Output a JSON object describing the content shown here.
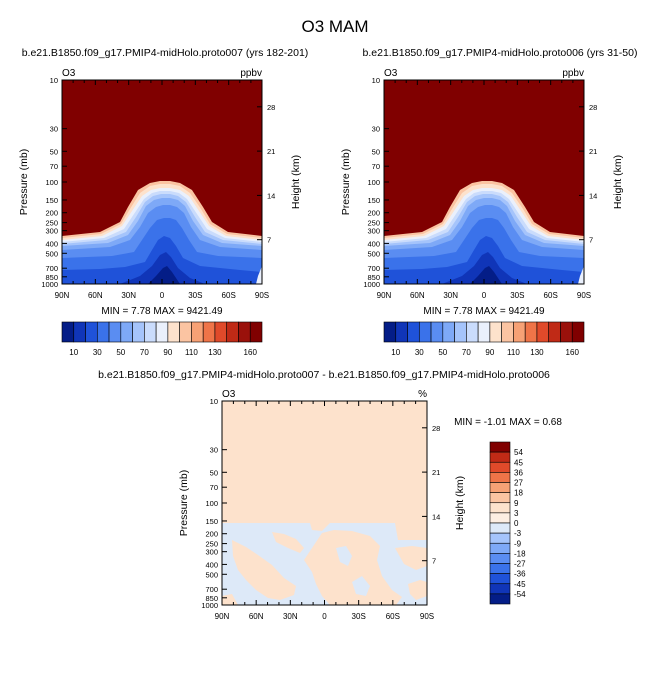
{
  "figure": {
    "title": "O3 MAM"
  },
  "colors": {
    "diff_positive_bg": "#fde2cc",
    "diff_negative_bg": "#dde9f8",
    "plot_frame": "#000000"
  },
  "chart_data": [
    {
      "type": "heatmap",
      "panel": "top-left",
      "title": "b.e21.B1850.f09_g17.PMIP4-midHolo.proto007 (yrs 182-201)",
      "left_label": "O3",
      "right_label": "ppbv",
      "ylabel": "Pressure (mb)",
      "ylabel_right": "Height (km)",
      "x_ticks": [
        "90N",
        "60N",
        "30N",
        "0",
        "30S",
        "60S",
        "90S"
      ],
      "y_ticks": [
        "10",
        "30",
        "50",
        "70",
        "100",
        "150",
        "200",
        "250",
        "300",
        "400",
        "500",
        "700",
        "850",
        "1000"
      ],
      "y_ticks_right": [
        "28",
        "21",
        "14",
        "7"
      ],
      "y_scale": "log",
      "ylim": [
        1000,
        10
      ],
      "xlim": [
        "90N",
        "90S"
      ],
      "stats": "MIN =   7.78   MAX = 9421.49",
      "colorbar_levels": [
        10,
        20,
        30,
        40,
        50,
        60,
        70,
        80,
        90,
        100,
        110,
        120,
        130,
        140,
        150,
        160
      ],
      "colorbar_labels": [
        "10",
        "30",
        "50",
        "70",
        "90",
        "110",
        "130",
        "160"
      ],
      "colorbar_colors": [
        "#041d87",
        "#1035b8",
        "#1f52d9",
        "#3a72ea",
        "#5a8df2",
        "#7ea9f7",
        "#a5c4fb",
        "#cadcfc",
        "#eaf0fc",
        "#fde2cc",
        "#fbc4a2",
        "#f7a175",
        "#ef7448",
        "#e04a2a",
        "#c02a16",
        "#9a110b",
        "#800000"
      ],
      "min": 7.78,
      "max": 9421.49
    },
    {
      "type": "heatmap",
      "panel": "top-right",
      "title": "b.e21.B1850.f09_g17.PMIP4-midHolo.proto006 (yrs 31-50)",
      "left_label": "O3",
      "right_label": "ppbv",
      "ylabel": "Pressure (mb)",
      "ylabel_right": "Height (km)",
      "x_ticks": [
        "90N",
        "60N",
        "30N",
        "0",
        "30S",
        "60S",
        "90S"
      ],
      "y_ticks": [
        "10",
        "30",
        "50",
        "70",
        "100",
        "150",
        "200",
        "250",
        "300",
        "400",
        "500",
        "700",
        "850",
        "1000"
      ],
      "y_ticks_right": [
        "28",
        "21",
        "14",
        "7"
      ],
      "y_scale": "log",
      "ylim": [
        1000,
        10
      ],
      "xlim": [
        "90N",
        "90S"
      ],
      "stats": "MIN =   7.78   MAX = 9421.49",
      "colorbar_levels": [
        10,
        20,
        30,
        40,
        50,
        60,
        70,
        80,
        90,
        100,
        110,
        120,
        130,
        140,
        150,
        160
      ],
      "colorbar_labels": [
        "10",
        "30",
        "50",
        "70",
        "90",
        "110",
        "130",
        "160"
      ],
      "colorbar_colors": [
        "#041d87",
        "#1035b8",
        "#1f52d9",
        "#3a72ea",
        "#5a8df2",
        "#7ea9f7",
        "#a5c4fb",
        "#cadcfc",
        "#eaf0fc",
        "#fde2cc",
        "#fbc4a2",
        "#f7a175",
        "#ef7448",
        "#e04a2a",
        "#c02a16",
        "#9a110b",
        "#800000"
      ],
      "min": 7.78,
      "max": 9421.49
    },
    {
      "type": "heatmap",
      "panel": "bottom-difference",
      "title": "b.e21.B1850.f09_g17.PMIP4-midHolo.proto007 - b.e21.B1850.f09_g17.PMIP4-midHolo.proto006",
      "left_label": "O3",
      "right_label": "%",
      "ylabel": "Pressure (mb)",
      "ylabel_right": "Height (km)",
      "x_ticks": [
        "90N",
        "60N",
        "30N",
        "0",
        "30S",
        "60S",
        "90S"
      ],
      "y_ticks": [
        "10",
        "30",
        "50",
        "70",
        "100",
        "150",
        "200",
        "250",
        "300",
        "400",
        "500",
        "700",
        "850",
        "1000"
      ],
      "y_ticks_right": [
        "28",
        "21",
        "14",
        "7"
      ],
      "y_scale": "log",
      "ylim": [
        1000,
        10
      ],
      "xlim": [
        "90N",
        "90S"
      ],
      "stats": "MIN =  -1.01   MAX =   0.68",
      "colorbar_levels": [
        54,
        45,
        36,
        27,
        18,
        9,
        3,
        0,
        -3,
        -9,
        -18,
        -27,
        -36,
        -45,
        -54
      ],
      "colorbar_labels": [
        "54",
        "45",
        "36",
        "27",
        "18",
        "9",
        "3",
        "0",
        "-3",
        "-9",
        "-18",
        "-27",
        "-36",
        "-45",
        "-54"
      ],
      "colorbar_colors": [
        "#800000",
        "#c02a16",
        "#e04a2a",
        "#ef7448",
        "#f7a175",
        "#fbc4a2",
        "#fde2cc",
        "#fdeee2",
        "#dde9f8",
        "#a5c4fb",
        "#7ea9f7",
        "#5a8df2",
        "#3a72ea",
        "#1f52d9",
        "#1035b8",
        "#041d87"
      ],
      "min": -1.01,
      "max": 0.68
    }
  ]
}
